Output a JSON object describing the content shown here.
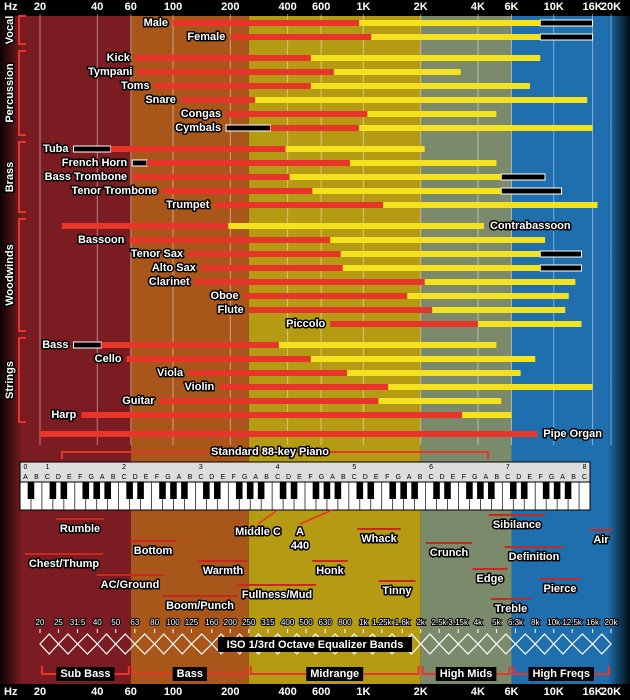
{
  "chart_data": {
    "type": "range",
    "xscale": "log",
    "axis_unit": "Hz",
    "xlim": [
      20,
      20000
    ],
    "xticks": [
      20,
      40,
      60,
      100,
      200,
      400,
      600,
      {
        "value": 1000,
        "label": "1K"
      },
      {
        "value": 2000,
        "label": "2K"
      },
      {
        "value": 4000,
        "label": "4K"
      },
      {
        "value": 6000,
        "label": "6K"
      },
      {
        "value": 10000,
        "label": "10K"
      },
      {
        "value": 16000,
        "label": "16K"
      },
      {
        "value": 20000,
        "label": "20K"
      }
    ],
    "grid": true,
    "colors": {
      "fundamental": "#e8352a",
      "harmonics": "#f4e21e",
      "extended": "#000000"
    },
    "regions": [
      {
        "name": "Sub Bass",
        "from": 20,
        "to": 60,
        "color": "#7a1c22"
      },
      {
        "name": "Bass",
        "from": 60,
        "to": 250,
        "color": "#a9561b"
      },
      {
        "name": "Midrange",
        "from": 250,
        "to": 2000,
        "color": "#b59a13"
      },
      {
        "name": "High Mids",
        "from": 2000,
        "to": 6000,
        "color": "#7b8a6b"
      },
      {
        "name": "High Freqs",
        "from": 6000,
        "to": 20000,
        "color": "#1f6fae"
      }
    ],
    "groups": [
      {
        "name": "Vocal",
        "instruments": [
          {
            "name": "Male",
            "values": [
              100,
              950,
              8500
            ],
            "ext": [
              8500,
              16000
            ]
          },
          {
            "name": "Female",
            "values": [
              200,
              1100,
              8500
            ],
            "ext": [
              8500,
              16000
            ]
          }
        ]
      },
      {
        "name": "Percussion",
        "instruments": [
          {
            "name": "Kick",
            "values": [
              63,
              530,
              8500
            ]
          },
          {
            "name": "Tympani",
            "values": [
              65,
              700,
              3250
            ]
          },
          {
            "name": "Toms",
            "values": [
              80,
              530,
              7500
            ]
          },
          {
            "name": "Snare",
            "values": [
              110,
              270,
              15000
            ]
          },
          {
            "name": "Congas",
            "values": [
              190,
              1050,
              5000
            ]
          },
          {
            "name": "Cymbals",
            "values": [
              325,
              950,
              16000
            ],
            "ext": [
              190,
              325
            ]
          }
        ]
      },
      {
        "name": "Brass",
        "instruments": [
          {
            "name": "Tuba",
            "values": [
              47,
              390,
              2100
            ],
            "ext": [
              30,
              47
            ]
          },
          {
            "name": "French Horn",
            "values": [
              73,
              850,
              5000
            ],
            "ext": [
              61,
              73
            ]
          },
          {
            "name": "Bass Trombone",
            "values": [
              61,
              410,
              5300
            ],
            "ext": [
              5300,
              9000
            ]
          },
          {
            "name": "Tenor Trombone",
            "values": [
              88,
              540,
              5300
            ],
            "ext": [
              5300,
              11000
            ]
          },
          {
            "name": "Trumpet",
            "values": [
              165,
              1270,
              17000
            ]
          }
        ]
      },
      {
        "name": "Woodwinds",
        "instruments": [
          {
            "name": "Contrabassoon",
            "values": [
              26,
              195,
              4300
            ]
          },
          {
            "name": "Bassoon",
            "values": [
              59,
              670,
              9000
            ]
          },
          {
            "name": "Tenor Sax",
            "values": [
              120,
              760,
              8500
            ],
            "ext": [
              8500,
              14000
            ]
          },
          {
            "name": "Alto Sax",
            "values": [
              140,
              780,
              8500
            ],
            "ext": [
              8500,
              14000
            ]
          },
          {
            "name": "Clarinet",
            "values": [
              130,
              2100,
              13000
            ]
          },
          {
            "name": "Oboe",
            "values": [
              235,
              1700,
              12000
            ]
          },
          {
            "name": "Flute",
            "values": [
              250,
              2300,
              11500
            ]
          },
          {
            "name": "Piccolo",
            "values": [
              670,
              4000,
              14000
            ]
          }
        ]
      },
      {
        "name": "Strings",
        "instruments": [
          {
            "name": "Bass",
            "values": [
              42,
              360,
              5000
            ],
            "ext": [
              30,
              42
            ]
          },
          {
            "name": "Cello",
            "values": [
              57,
              530,
              8000
            ]
          },
          {
            "name": "Viola",
            "values": [
              120,
              820,
              6700
            ]
          },
          {
            "name": "Violin",
            "values": [
              175,
              1350,
              16000
            ]
          },
          {
            "name": "Guitar",
            "values": [
              85,
              1200,
              5300
            ]
          },
          {
            "name": "Harp",
            "values": [
              33,
              3300,
              6000
            ]
          }
        ]
      }
    ],
    "other_instruments": [
      {
        "name": "Pipe Organ",
        "values": [
          20,
          8200
        ]
      }
    ],
    "piano": {
      "title": "Standard 88-key Piano",
      "notes": [
        "C",
        "D",
        "E",
        "F",
        "G",
        "A",
        "B"
      ],
      "octaves": [
        0,
        1,
        2,
        3,
        4,
        5,
        6,
        7,
        8
      ],
      "middle_c": "Middle C",
      "a440": [
        "A",
        "440"
      ]
    },
    "tone_words": [
      "Rumble",
      "Chest/Thump",
      "Bottom",
      "AC/Ground",
      "Warmth",
      "Boom/Punch",
      "Fullness/Mud",
      "Honk",
      "Whack",
      "Tinny",
      "Crunch",
      "Edge",
      "Sibilance",
      "Definition",
      "Pierce",
      "Air",
      "Treble"
    ],
    "iso_bands": {
      "title": "ISO 1/3rd Octave Equalizer Bands",
      "ticks": [
        20,
        25,
        31.5,
        40,
        50,
        63,
        80,
        100,
        125,
        160,
        200,
        250,
        315,
        400,
        500,
        630,
        800,
        {
          "value": 1000,
          "label": "1k"
        },
        {
          "value": 1250,
          "label": "1.25k"
        },
        {
          "value": 1600,
          "label": "1.6k"
        },
        {
          "value": 2000,
          "label": "2k"
        },
        {
          "value": 2500,
          "label": "2.5k"
        },
        {
          "value": 3150,
          "label": "3.15k"
        },
        {
          "value": 4000,
          "label": "4k"
        },
        {
          "value": 5000,
          "label": "5k"
        },
        {
          "value": 6300,
          "label": "6.3k"
        },
        {
          "value": 8000,
          "label": "8k"
        },
        {
          "value": 10000,
          "label": "10k"
        },
        {
          "value": 12500,
          "label": "12.5k"
        },
        {
          "value": 16000,
          "label": "16k"
        },
        {
          "value": 20000,
          "label": "20k"
        }
      ]
    }
  }
}
